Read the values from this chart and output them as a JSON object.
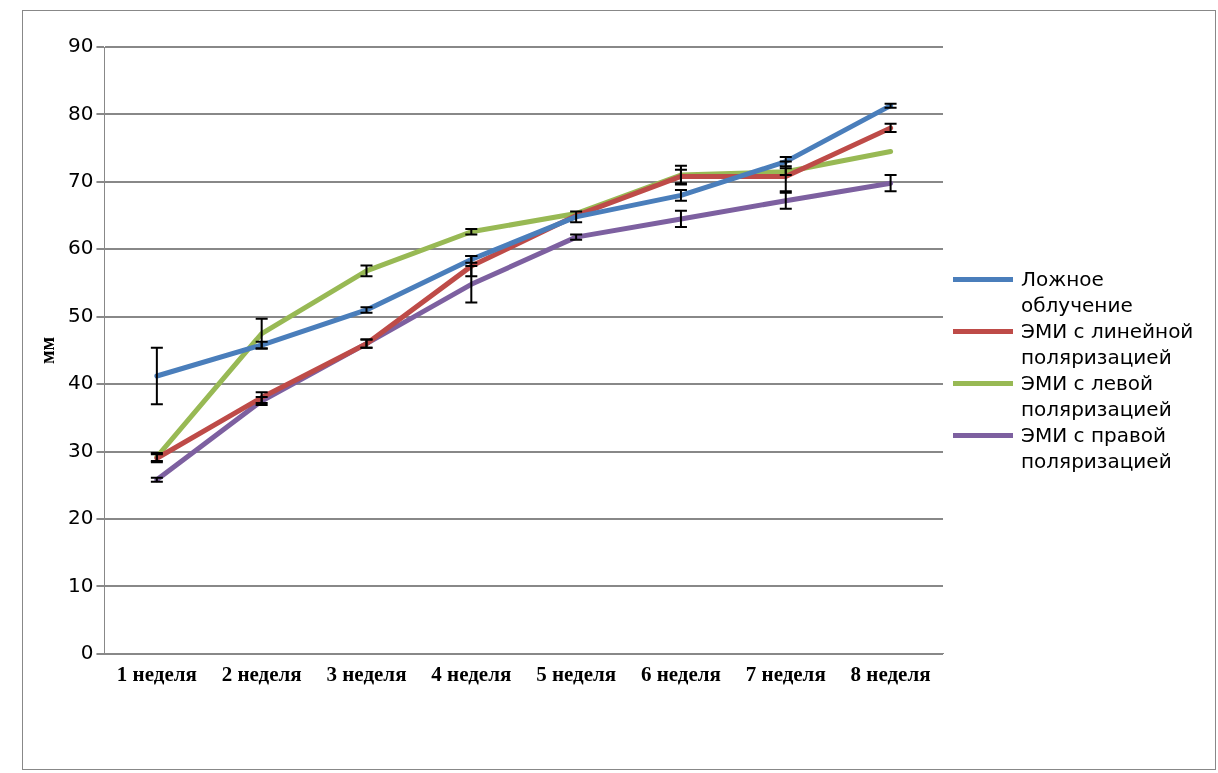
{
  "chart_data": {
    "type": "line",
    "ylabel": "мм",
    "categories": [
      "1 неделя",
      "2 неделя",
      "3 неделя",
      "4 неделя",
      "5 неделя",
      "6 неделя",
      "7 неделя",
      "8 неделя"
    ],
    "ylim": [
      0,
      90
    ],
    "yticks": [
      0,
      10,
      20,
      30,
      40,
      50,
      60,
      70,
      80,
      90
    ],
    "grid": "y",
    "legend": "right",
    "line_style": "solid",
    "series": [
      {
        "name": "Ложное облучение",
        "color": "#4a7ebb",
        "values": [
          41.2,
          45.8,
          51,
          58.5,
          64.8,
          68,
          73,
          81.3
        ],
        "errors": [
          4.2,
          0.5,
          0.4,
          0.5,
          0.8,
          0.8,
          0.7,
          0.3
        ]
      },
      {
        "name": "ЭМИ с линейной поляризацией",
        "color": "#be4b48",
        "values": [
          29,
          38,
          46,
          57.5,
          65,
          70.8,
          70.8,
          78
        ],
        "errors": [
          0.6,
          0.8,
          0.6,
          1.5,
          null,
          1,
          2.2,
          0.6
        ]
      },
      {
        "name": "ЭМИ с левой поляризацией",
        "color": "#98b954",
        "values": [
          29.2,
          47.5,
          56.8,
          62.6,
          65.3,
          71,
          71.5,
          74.5
        ],
        "errors": [
          0.6,
          2.2,
          0.8,
          0.4,
          null,
          1.4,
          0.5,
          null
        ]
      },
      {
        "name": "ЭМИ с правой поляризацией",
        "color": "#7d60a0",
        "values": [
          25.8,
          37.5,
          46,
          54.8,
          61.8,
          64.5,
          67.2,
          69.8
        ],
        "errors": [
          0.3,
          0.6,
          0.6,
          2.7,
          0.4,
          1.2,
          1.2,
          1.2
        ]
      }
    ]
  }
}
